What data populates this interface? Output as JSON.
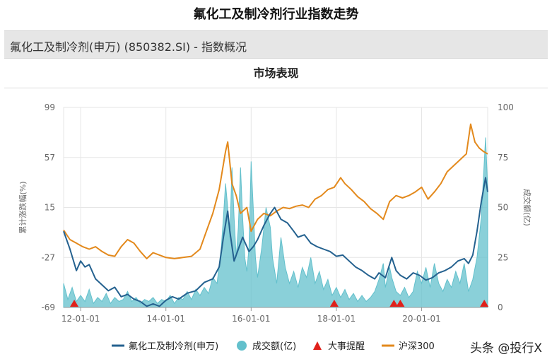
{
  "page": {
    "title": "氟化工及制冷剂行业指数走势",
    "index_name": "氟化工及制冷剂(申万) (850382.SI) - 指数概况",
    "section_title": "市场表现",
    "watermark": "头条 @投行X"
  },
  "colors": {
    "index_line": "#24618f",
    "volume_area": "#63c0cc",
    "event_marker": "#e0211b",
    "hs300_line": "#e3891c",
    "axis_text": "#666666",
    "grid": "#e6e6e6"
  },
  "chart_data": {
    "type": "line",
    "xlabel": "",
    "ylabel_left": "累计涨跌幅(%)",
    "ylabel_right": "成交额(亿)",
    "x_ticks": [
      "12-01-01",
      "14-01-01",
      "16-01-01",
      "18-01-01",
      "20-01-01"
    ],
    "x_tick_positions": [
      2012.0,
      2014.0,
      2016.0,
      2018.0,
      2020.0
    ],
    "x_range": [
      2011.6,
      2021.55
    ],
    "ylim_left": [
      -69,
      99
    ],
    "y_ticks_left": [
      -69,
      -27,
      15,
      57,
      99
    ],
    "ylim_right": [
      0,
      100
    ],
    "y_ticks_right": [
      0,
      25,
      50,
      75,
      100
    ],
    "grid": true,
    "legend_position": "bottom",
    "legend": [
      {
        "name": "氟化工及制冷剂(申万)",
        "key": "index"
      },
      {
        "name": "成交额(亿)",
        "key": "volume"
      },
      {
        "name": "大事提醒",
        "key": "events"
      },
      {
        "name": "沪深300",
        "key": "hs300"
      }
    ],
    "series": [
      {
        "name": "氟化工及制冷剂(申万)",
        "key": "index",
        "axis": "left",
        "points": [
          [
            2011.6,
            -5
          ],
          [
            2011.75,
            -20
          ],
          [
            2011.9,
            -38
          ],
          [
            2012.0,
            -30
          ],
          [
            2012.1,
            -35
          ],
          [
            2012.2,
            -33
          ],
          [
            2012.35,
            -45
          ],
          [
            2012.5,
            -50
          ],
          [
            2012.65,
            -55
          ],
          [
            2012.8,
            -52
          ],
          [
            2012.95,
            -60
          ],
          [
            2013.1,
            -58
          ],
          [
            2013.25,
            -62
          ],
          [
            2013.4,
            -64
          ],
          [
            2013.55,
            -68
          ],
          [
            2013.7,
            -66
          ],
          [
            2013.85,
            -68
          ],
          [
            2014.0,
            -63
          ],
          [
            2014.15,
            -60
          ],
          [
            2014.3,
            -62
          ],
          [
            2014.5,
            -57
          ],
          [
            2014.7,
            -55
          ],
          [
            2014.9,
            -48
          ],
          [
            2015.1,
            -45
          ],
          [
            2015.25,
            -35
          ],
          [
            2015.35,
            -10
          ],
          [
            2015.45,
            12
          ],
          [
            2015.5,
            -5
          ],
          [
            2015.6,
            -30
          ],
          [
            2015.7,
            -20
          ],
          [
            2015.8,
            -10
          ],
          [
            2015.95,
            -22
          ],
          [
            2016.05,
            -18
          ],
          [
            2016.15,
            -12
          ],
          [
            2016.3,
            0
          ],
          [
            2016.45,
            10
          ],
          [
            2016.55,
            15
          ],
          [
            2016.7,
            5
          ],
          [
            2016.85,
            2
          ],
          [
            2017.0,
            -5
          ],
          [
            2017.1,
            -10
          ],
          [
            2017.25,
            -8
          ],
          [
            2017.4,
            -15
          ],
          [
            2017.55,
            -18
          ],
          [
            2017.7,
            -20
          ],
          [
            2017.85,
            -22
          ],
          [
            2018.0,
            -26
          ],
          [
            2018.15,
            -25
          ],
          [
            2018.3,
            -30
          ],
          [
            2018.45,
            -35
          ],
          [
            2018.6,
            -38
          ],
          [
            2018.75,
            -42
          ],
          [
            2018.9,
            -45
          ],
          [
            2019.0,
            -40
          ],
          [
            2019.15,
            -44
          ],
          [
            2019.3,
            -27
          ],
          [
            2019.4,
            -38
          ],
          [
            2019.5,
            -42
          ],
          [
            2019.65,
            -45
          ],
          [
            2019.8,
            -40
          ],
          [
            2019.95,
            -42
          ],
          [
            2020.1,
            -46
          ],
          [
            2020.25,
            -44
          ],
          [
            2020.4,
            -40
          ],
          [
            2020.55,
            -38
          ],
          [
            2020.7,
            -35
          ],
          [
            2020.85,
            -30
          ],
          [
            2021.0,
            -28
          ],
          [
            2021.1,
            -32
          ],
          [
            2021.2,
            -25
          ],
          [
            2021.3,
            -5
          ],
          [
            2021.4,
            20
          ],
          [
            2021.5,
            40
          ],
          [
            2021.55,
            28
          ]
        ]
      },
      {
        "name": "沪深300",
        "key": "hs300",
        "axis": "left",
        "points": [
          [
            2011.6,
            -4
          ],
          [
            2011.75,
            -12
          ],
          [
            2011.9,
            -15
          ],
          [
            2012.05,
            -18
          ],
          [
            2012.2,
            -20
          ],
          [
            2012.35,
            -18
          ],
          [
            2012.5,
            -22
          ],
          [
            2012.65,
            -25
          ],
          [
            2012.8,
            -26
          ],
          [
            2012.95,
            -18
          ],
          [
            2013.1,
            -12
          ],
          [
            2013.25,
            -15
          ],
          [
            2013.4,
            -22
          ],
          [
            2013.55,
            -28
          ],
          [
            2013.7,
            -23
          ],
          [
            2013.85,
            -25
          ],
          [
            2014.0,
            -27
          ],
          [
            2014.2,
            -28
          ],
          [
            2014.4,
            -27
          ],
          [
            2014.6,
            -26
          ],
          [
            2014.8,
            -20
          ],
          [
            2014.95,
            -5
          ],
          [
            2015.1,
            10
          ],
          [
            2015.25,
            30
          ],
          [
            2015.4,
            62
          ],
          [
            2015.45,
            70
          ],
          [
            2015.55,
            35
          ],
          [
            2015.65,
            25
          ],
          [
            2015.75,
            10
          ],
          [
            2015.9,
            15
          ],
          [
            2016.0,
            -5
          ],
          [
            2016.15,
            5
          ],
          [
            2016.3,
            10
          ],
          [
            2016.45,
            8
          ],
          [
            2016.6,
            12
          ],
          [
            2016.75,
            15
          ],
          [
            2016.9,
            14
          ],
          [
            2017.05,
            16
          ],
          [
            2017.2,
            17
          ],
          [
            2017.35,
            15
          ],
          [
            2017.5,
            22
          ],
          [
            2017.65,
            25
          ],
          [
            2017.8,
            30
          ],
          [
            2017.95,
            32
          ],
          [
            2018.1,
            40
          ],
          [
            2018.2,
            35
          ],
          [
            2018.35,
            30
          ],
          [
            2018.5,
            24
          ],
          [
            2018.65,
            20
          ],
          [
            2018.8,
            14
          ],
          [
            2018.95,
            10
          ],
          [
            2019.1,
            5
          ],
          [
            2019.25,
            20
          ],
          [
            2019.4,
            25
          ],
          [
            2019.55,
            23
          ],
          [
            2019.7,
            25
          ],
          [
            2019.85,
            28
          ],
          [
            2020.0,
            32
          ],
          [
            2020.15,
            22
          ],
          [
            2020.3,
            28
          ],
          [
            2020.45,
            35
          ],
          [
            2020.6,
            45
          ],
          [
            2020.75,
            50
          ],
          [
            2020.9,
            55
          ],
          [
            2021.05,
            60
          ],
          [
            2021.15,
            85
          ],
          [
            2021.25,
            70
          ],
          [
            2021.35,
            65
          ],
          [
            2021.45,
            62
          ],
          [
            2021.55,
            60
          ]
        ]
      },
      {
        "name": "成交额(亿)",
        "key": "volume",
        "axis": "right",
        "type": "area",
        "points": [
          [
            2011.6,
            12
          ],
          [
            2011.7,
            4
          ],
          [
            2011.8,
            10
          ],
          [
            2011.9,
            3
          ],
          [
            2012.0,
            6
          ],
          [
            2012.1,
            3
          ],
          [
            2012.2,
            9
          ],
          [
            2012.3,
            2
          ],
          [
            2012.4,
            5
          ],
          [
            2012.5,
            3
          ],
          [
            2012.6,
            7
          ],
          [
            2012.7,
            2
          ],
          [
            2012.8,
            5
          ],
          [
            2012.9,
            3
          ],
          [
            2013.0,
            4
          ],
          [
            2013.1,
            8
          ],
          [
            2013.2,
            3
          ],
          [
            2013.3,
            5
          ],
          [
            2013.4,
            2
          ],
          [
            2013.5,
            4
          ],
          [
            2013.6,
            3
          ],
          [
            2013.7,
            5
          ],
          [
            2013.8,
            2
          ],
          [
            2013.9,
            4
          ],
          [
            2014.0,
            3
          ],
          [
            2014.1,
            6
          ],
          [
            2014.2,
            2
          ],
          [
            2014.3,
            5
          ],
          [
            2014.4,
            4
          ],
          [
            2014.5,
            8
          ],
          [
            2014.6,
            4
          ],
          [
            2014.7,
            9
          ],
          [
            2014.8,
            6
          ],
          [
            2014.9,
            10
          ],
          [
            2015.0,
            7
          ],
          [
            2015.1,
            15
          ],
          [
            2015.2,
            12
          ],
          [
            2015.3,
            30
          ],
          [
            2015.35,
            45
          ],
          [
            2015.4,
            62
          ],
          [
            2015.45,
            50
          ],
          [
            2015.5,
            35
          ],
          [
            2015.55,
            70
          ],
          [
            2015.6,
            45
          ],
          [
            2015.65,
            25
          ],
          [
            2015.7,
            40
          ],
          [
            2015.75,
            70
          ],
          [
            2015.8,
            45
          ],
          [
            2015.85,
            25
          ],
          [
            2015.9,
            18
          ],
          [
            2015.95,
            30
          ],
          [
            2016.0,
            73
          ],
          [
            2016.05,
            50
          ],
          [
            2016.1,
            25
          ],
          [
            2016.15,
            15
          ],
          [
            2016.25,
            30
          ],
          [
            2016.35,
            50
          ],
          [
            2016.45,
            40
          ],
          [
            2016.5,
            25
          ],
          [
            2016.6,
            12
          ],
          [
            2016.7,
            35
          ],
          [
            2016.8,
            20
          ],
          [
            2016.9,
            12
          ],
          [
            2017.0,
            18
          ],
          [
            2017.1,
            10
          ],
          [
            2017.2,
            20
          ],
          [
            2017.3,
            15
          ],
          [
            2017.4,
            25
          ],
          [
            2017.5,
            12
          ],
          [
            2017.6,
            18
          ],
          [
            2017.7,
            9
          ],
          [
            2017.8,
            14
          ],
          [
            2017.9,
            6
          ],
          [
            2018.0,
            10
          ],
          [
            2018.1,
            5
          ],
          [
            2018.2,
            9
          ],
          [
            2018.3,
            4
          ],
          [
            2018.4,
            7
          ],
          [
            2018.5,
            3
          ],
          [
            2018.6,
            6
          ],
          [
            2018.7,
            3
          ],
          [
            2018.8,
            5
          ],
          [
            2018.9,
            8
          ],
          [
            2019.0,
            14
          ],
          [
            2019.1,
            22
          ],
          [
            2019.15,
            10
          ],
          [
            2019.25,
            20
          ],
          [
            2019.3,
            15
          ],
          [
            2019.4,
            8
          ],
          [
            2019.5,
            6
          ],
          [
            2019.6,
            10
          ],
          [
            2019.7,
            5
          ],
          [
            2019.8,
            8
          ],
          [
            2019.9,
            18
          ],
          [
            2020.0,
            12
          ],
          [
            2020.1,
            20
          ],
          [
            2020.2,
            10
          ],
          [
            2020.3,
            22
          ],
          [
            2020.4,
            12
          ],
          [
            2020.5,
            8
          ],
          [
            2020.6,
            14
          ],
          [
            2020.7,
            10
          ],
          [
            2020.8,
            18
          ],
          [
            2020.9,
            12
          ],
          [
            2021.0,
            22
          ],
          [
            2021.1,
            8
          ],
          [
            2021.2,
            14
          ],
          [
            2021.3,
            25
          ],
          [
            2021.4,
            45
          ],
          [
            2021.5,
            85
          ],
          [
            2021.55,
            60
          ]
        ]
      }
    ],
    "events": [
      2011.85,
      2017.95,
      2019.35,
      2019.5,
      2021.47
    ]
  }
}
